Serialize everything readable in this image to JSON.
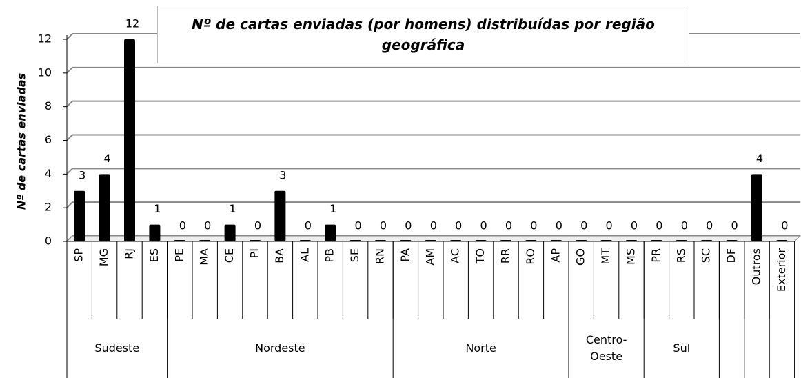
{
  "chart_data": {
    "type": "bar",
    "title": "Nº de cartas enviadas (por homens) distribuídas por região geográfica",
    "y_label": "Nº de cartas enviadas",
    "categories": [
      "SP",
      "MG",
      "RJ",
      "ES",
      "PE",
      "MA",
      "CE",
      "PI",
      "BA",
      "AL",
      "PB",
      "SE",
      "RN",
      "PA",
      "AM",
      "AC",
      "TO",
      "RR",
      "RO",
      "AP",
      "GO",
      "MT",
      "MS",
      "PR",
      "RS",
      "SC",
      "DF",
      "Outros",
      "Exterior"
    ],
    "values": [
      3,
      4,
      12,
      1,
      0,
      0,
      1,
      0,
      3,
      0,
      1,
      0,
      0,
      0,
      0,
      0,
      0,
      0,
      0,
      0,
      0,
      0,
      0,
      0,
      0,
      0,
      0,
      4,
      0
    ],
    "groups": [
      {
        "label": "Sudeste",
        "size": 4
      },
      {
        "label": "Nordeste",
        "size": 9
      },
      {
        "label": "Norte",
        "size": 7
      },
      {
        "label": "Centro-Oeste",
        "size": 3
      },
      {
        "label": "Sul",
        "size": 3
      },
      {
        "label": null,
        "size": 1
      },
      {
        "label": null,
        "size": 1
      },
      {
        "label": null,
        "size": 1
      }
    ],
    "color": "#000000",
    "ylim": [
      0,
      12
    ],
    "yticks": [
      0,
      2,
      4,
      6,
      8,
      10,
      12
    ],
    "grid": true
  }
}
